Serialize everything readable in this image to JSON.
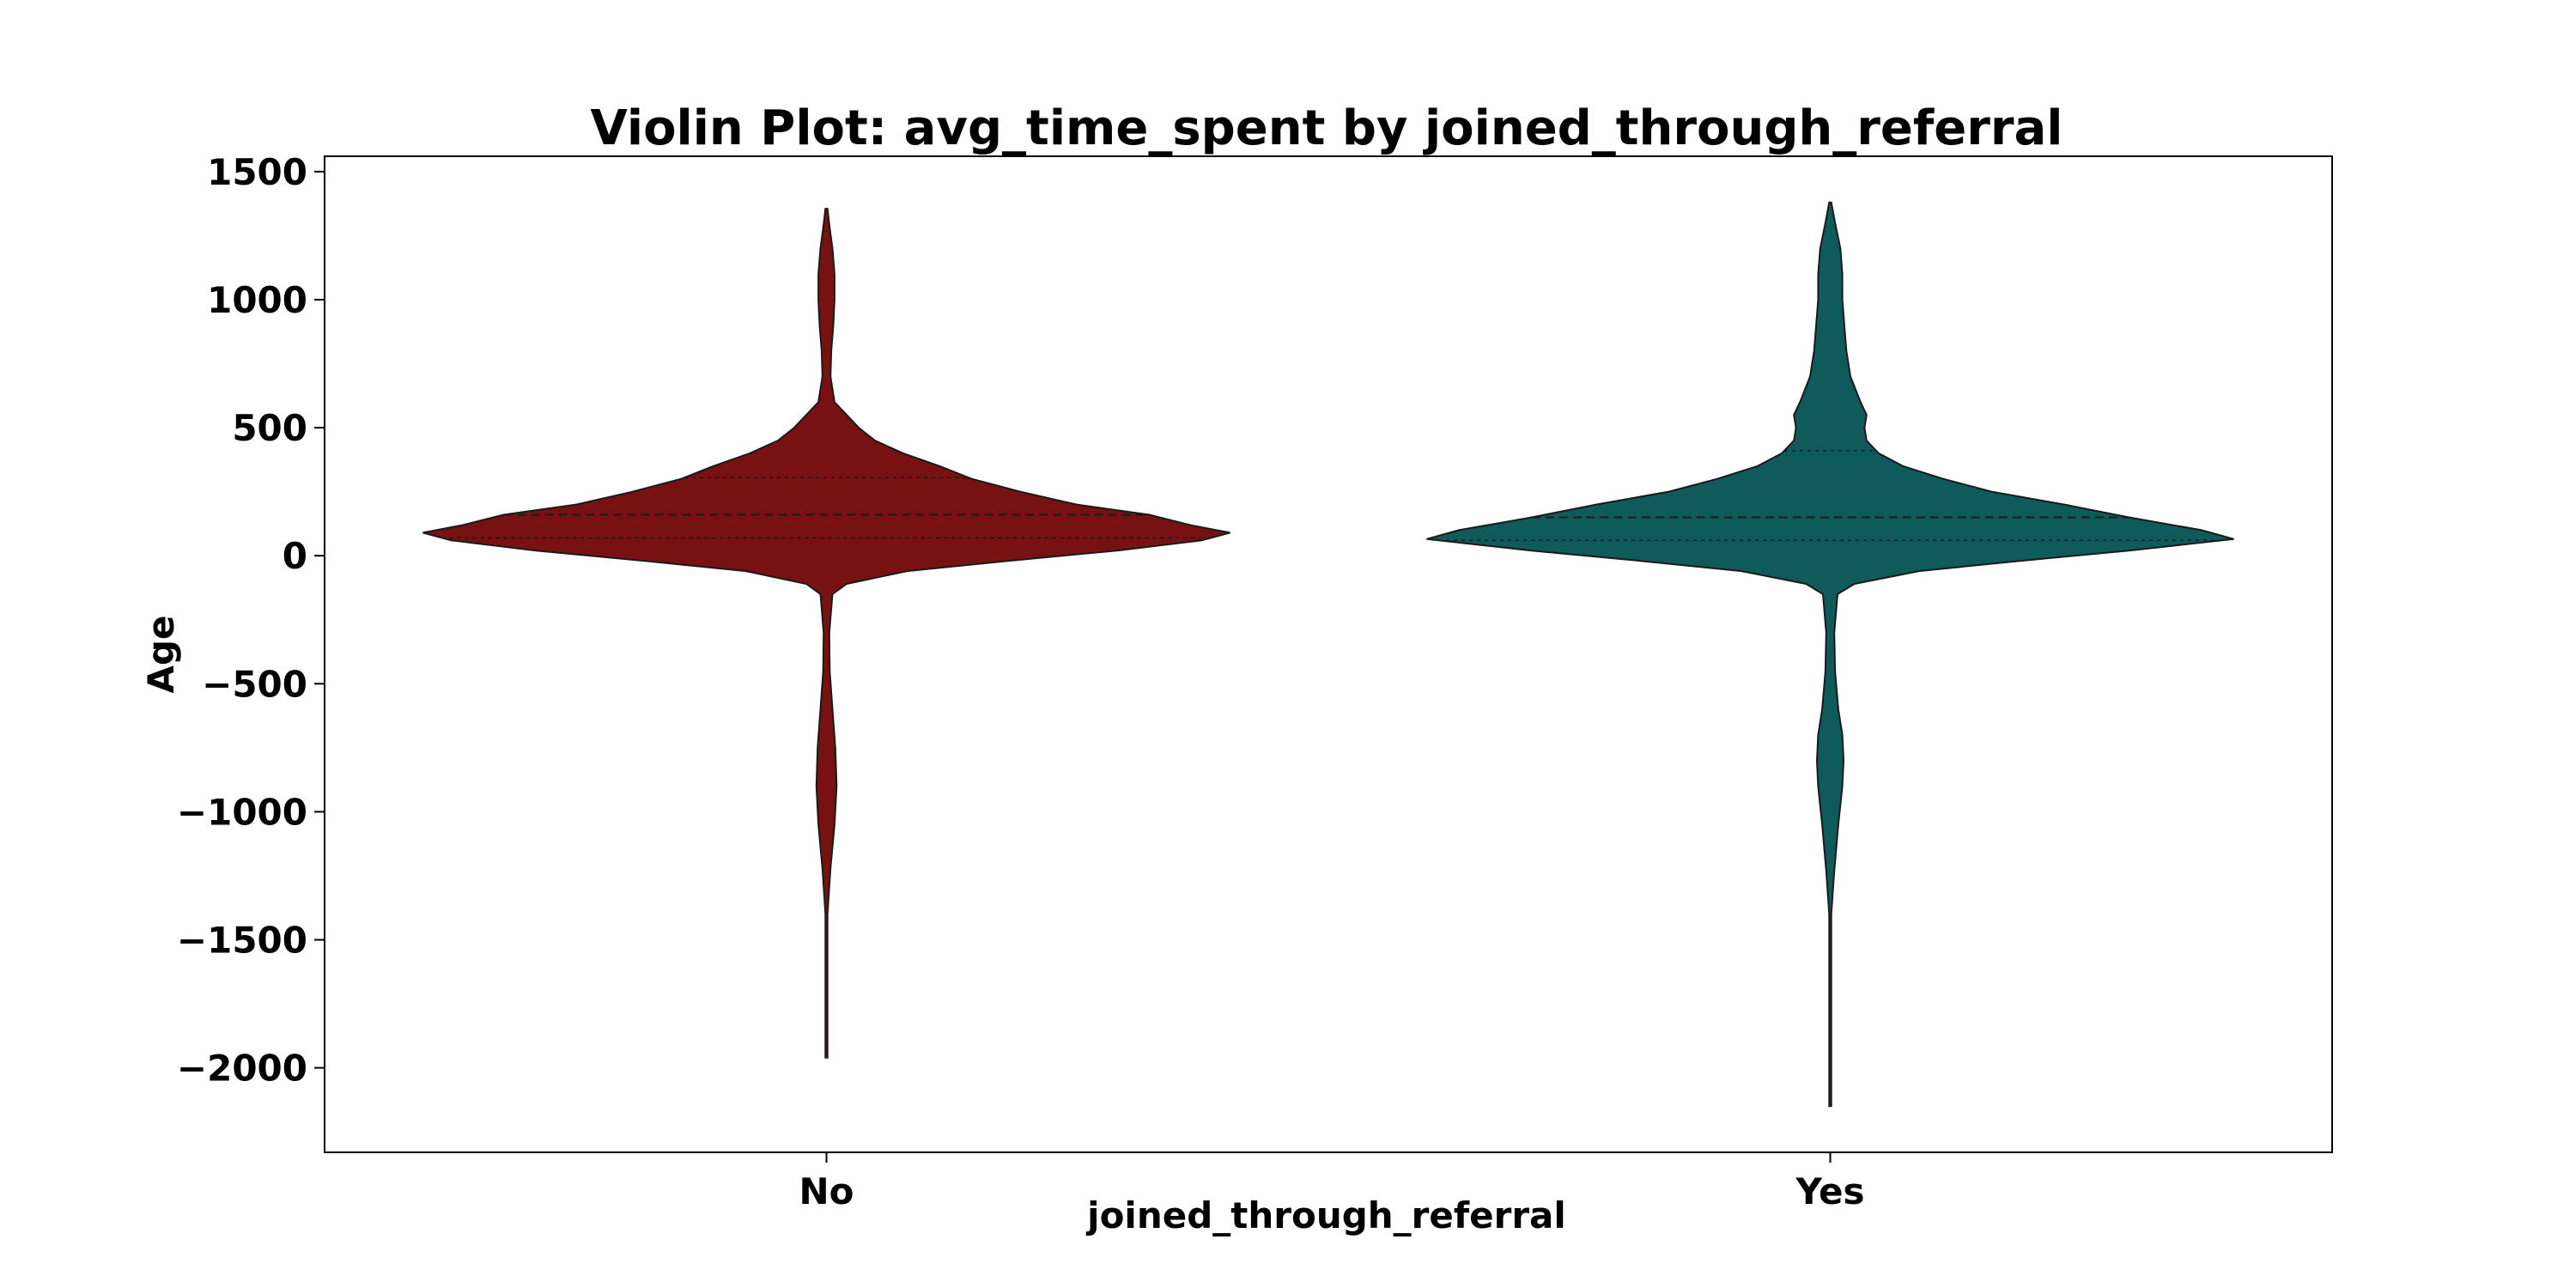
{
  "chart_data": {
    "type": "violin",
    "title": "Violin Plot: avg_time_spent by joined_through_referral",
    "xlabel": "joined_through_referral",
    "ylabel": "Age",
    "categories": [
      "No",
      "Yes"
    ],
    "ylim": [
      -2330,
      1560
    ],
    "yticks": [
      1500,
      1000,
      500,
      0,
      -500,
      -1000,
      -1500,
      -2000
    ],
    "ytick_labels": [
      "1500",
      "1000",
      "500",
      "0",
      "−500",
      "−1000",
      "−1500",
      "−2000"
    ],
    "grid": false,
    "legend": "none",
    "inner": "quartile",
    "series": [
      {
        "category": "No",
        "color": "#781212",
        "min": -1960,
        "max": 1355,
        "quartiles": [
          70,
          160,
          305
        ],
        "density": [
          [
            -1960,
            0.0
          ],
          [
            -1700,
            0.0
          ],
          [
            -1400,
            0.0
          ],
          [
            -1220,
            0.01
          ],
          [
            -1050,
            0.02
          ],
          [
            -900,
            0.025
          ],
          [
            -750,
            0.022
          ],
          [
            -600,
            0.015
          ],
          [
            -450,
            0.008
          ],
          [
            -300,
            0.007
          ],
          [
            -150,
            0.015
          ],
          [
            -110,
            0.05
          ],
          [
            -60,
            0.2
          ],
          [
            -20,
            0.45
          ],
          [
            20,
            0.72
          ],
          [
            60,
            0.93
          ],
          [
            90,
            1.0
          ],
          [
            120,
            0.9
          ],
          [
            160,
            0.8
          ],
          [
            200,
            0.62
          ],
          [
            250,
            0.48
          ],
          [
            300,
            0.36
          ],
          [
            350,
            0.28
          ],
          [
            400,
            0.19
          ],
          [
            450,
            0.12
          ],
          [
            500,
            0.08
          ],
          [
            550,
            0.05
          ],
          [
            600,
            0.02
          ],
          [
            700,
            0.01
          ],
          [
            800,
            0.012
          ],
          [
            900,
            0.017
          ],
          [
            1000,
            0.02
          ],
          [
            1100,
            0.02
          ],
          [
            1200,
            0.015
          ],
          [
            1280,
            0.008
          ],
          [
            1355,
            0.0
          ]
        ]
      },
      {
        "category": "Yes",
        "color": "#0f5a5a",
        "min": -2150,
        "max": 1380,
        "quartiles": [
          60,
          150,
          410
        ],
        "density": [
          [
            -2150,
            0.0
          ],
          [
            -1700,
            0.0
          ],
          [
            -1400,
            0.0
          ],
          [
            -1230,
            0.01
          ],
          [
            -1050,
            0.02
          ],
          [
            -900,
            0.03
          ],
          [
            -800,
            0.033
          ],
          [
            -700,
            0.03
          ],
          [
            -600,
            0.02
          ],
          [
            -450,
            0.012
          ],
          [
            -300,
            0.01
          ],
          [
            -150,
            0.018
          ],
          [
            -110,
            0.06
          ],
          [
            -60,
            0.22
          ],
          [
            -20,
            0.47
          ],
          [
            20,
            0.74
          ],
          [
            65,
            1.0
          ],
          [
            100,
            0.92
          ],
          [
            150,
            0.74
          ],
          [
            200,
            0.58
          ],
          [
            250,
            0.4
          ],
          [
            300,
            0.28
          ],
          [
            350,
            0.18
          ],
          [
            400,
            0.12
          ],
          [
            450,
            0.09
          ],
          [
            500,
            0.085
          ],
          [
            550,
            0.09
          ],
          [
            600,
            0.075
          ],
          [
            700,
            0.05
          ],
          [
            800,
            0.04
          ],
          [
            900,
            0.035
          ],
          [
            1000,
            0.03
          ],
          [
            1100,
            0.03
          ],
          [
            1200,
            0.025
          ],
          [
            1300,
            0.012
          ],
          [
            1380,
            0.0
          ]
        ]
      }
    ]
  }
}
